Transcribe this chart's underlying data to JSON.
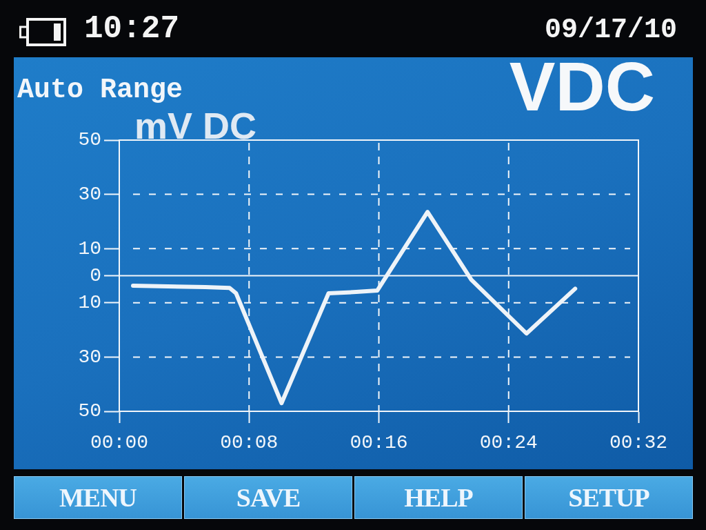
{
  "chart_data": {
    "type": "line",
    "title": "VDC",
    "subtitle": "Auto Range",
    "ylabel": "mV DC",
    "x": [
      0.85,
      5.3,
      6.8,
      7.2,
      10.0,
      12.9,
      14.6,
      15.9,
      19.0,
      21.7,
      25.1,
      28.1
    ],
    "values": [
      -3.7,
      -4.2,
      -4.5,
      -6.5,
      -47,
      -6.5,
      -6.0,
      -5.5,
      23.5,
      -1.5,
      -21.3,
      -4.8
    ],
    "color": "#eef3f8",
    "xlim": [
      0,
      32
    ],
    "xticks": [
      {
        "value": 0,
        "label": "00:00"
      },
      {
        "value": 8,
        "label": "00:08"
      },
      {
        "value": 16,
        "label": "00:16"
      },
      {
        "value": 24,
        "label": "00:24"
      },
      {
        "value": 32,
        "label": "00:32"
      }
    ],
    "ylim": [
      -50,
      50
    ],
    "yticks": [
      {
        "value": -50,
        "label": "50"
      },
      {
        "value": -30,
        "label": "30"
      },
      {
        "value": -10,
        "label": "10"
      },
      0,
      10,
      30,
      50
    ],
    "grid": true,
    "ref_lines": [
      {
        "axis": "y",
        "value": 0,
        "color": "#f2f6fa"
      }
    ],
    "annotations": [
      "10:27",
      "09/17/10",
      "MENU",
      "SAVE",
      "HELP",
      "SETUP"
    ]
  }
}
